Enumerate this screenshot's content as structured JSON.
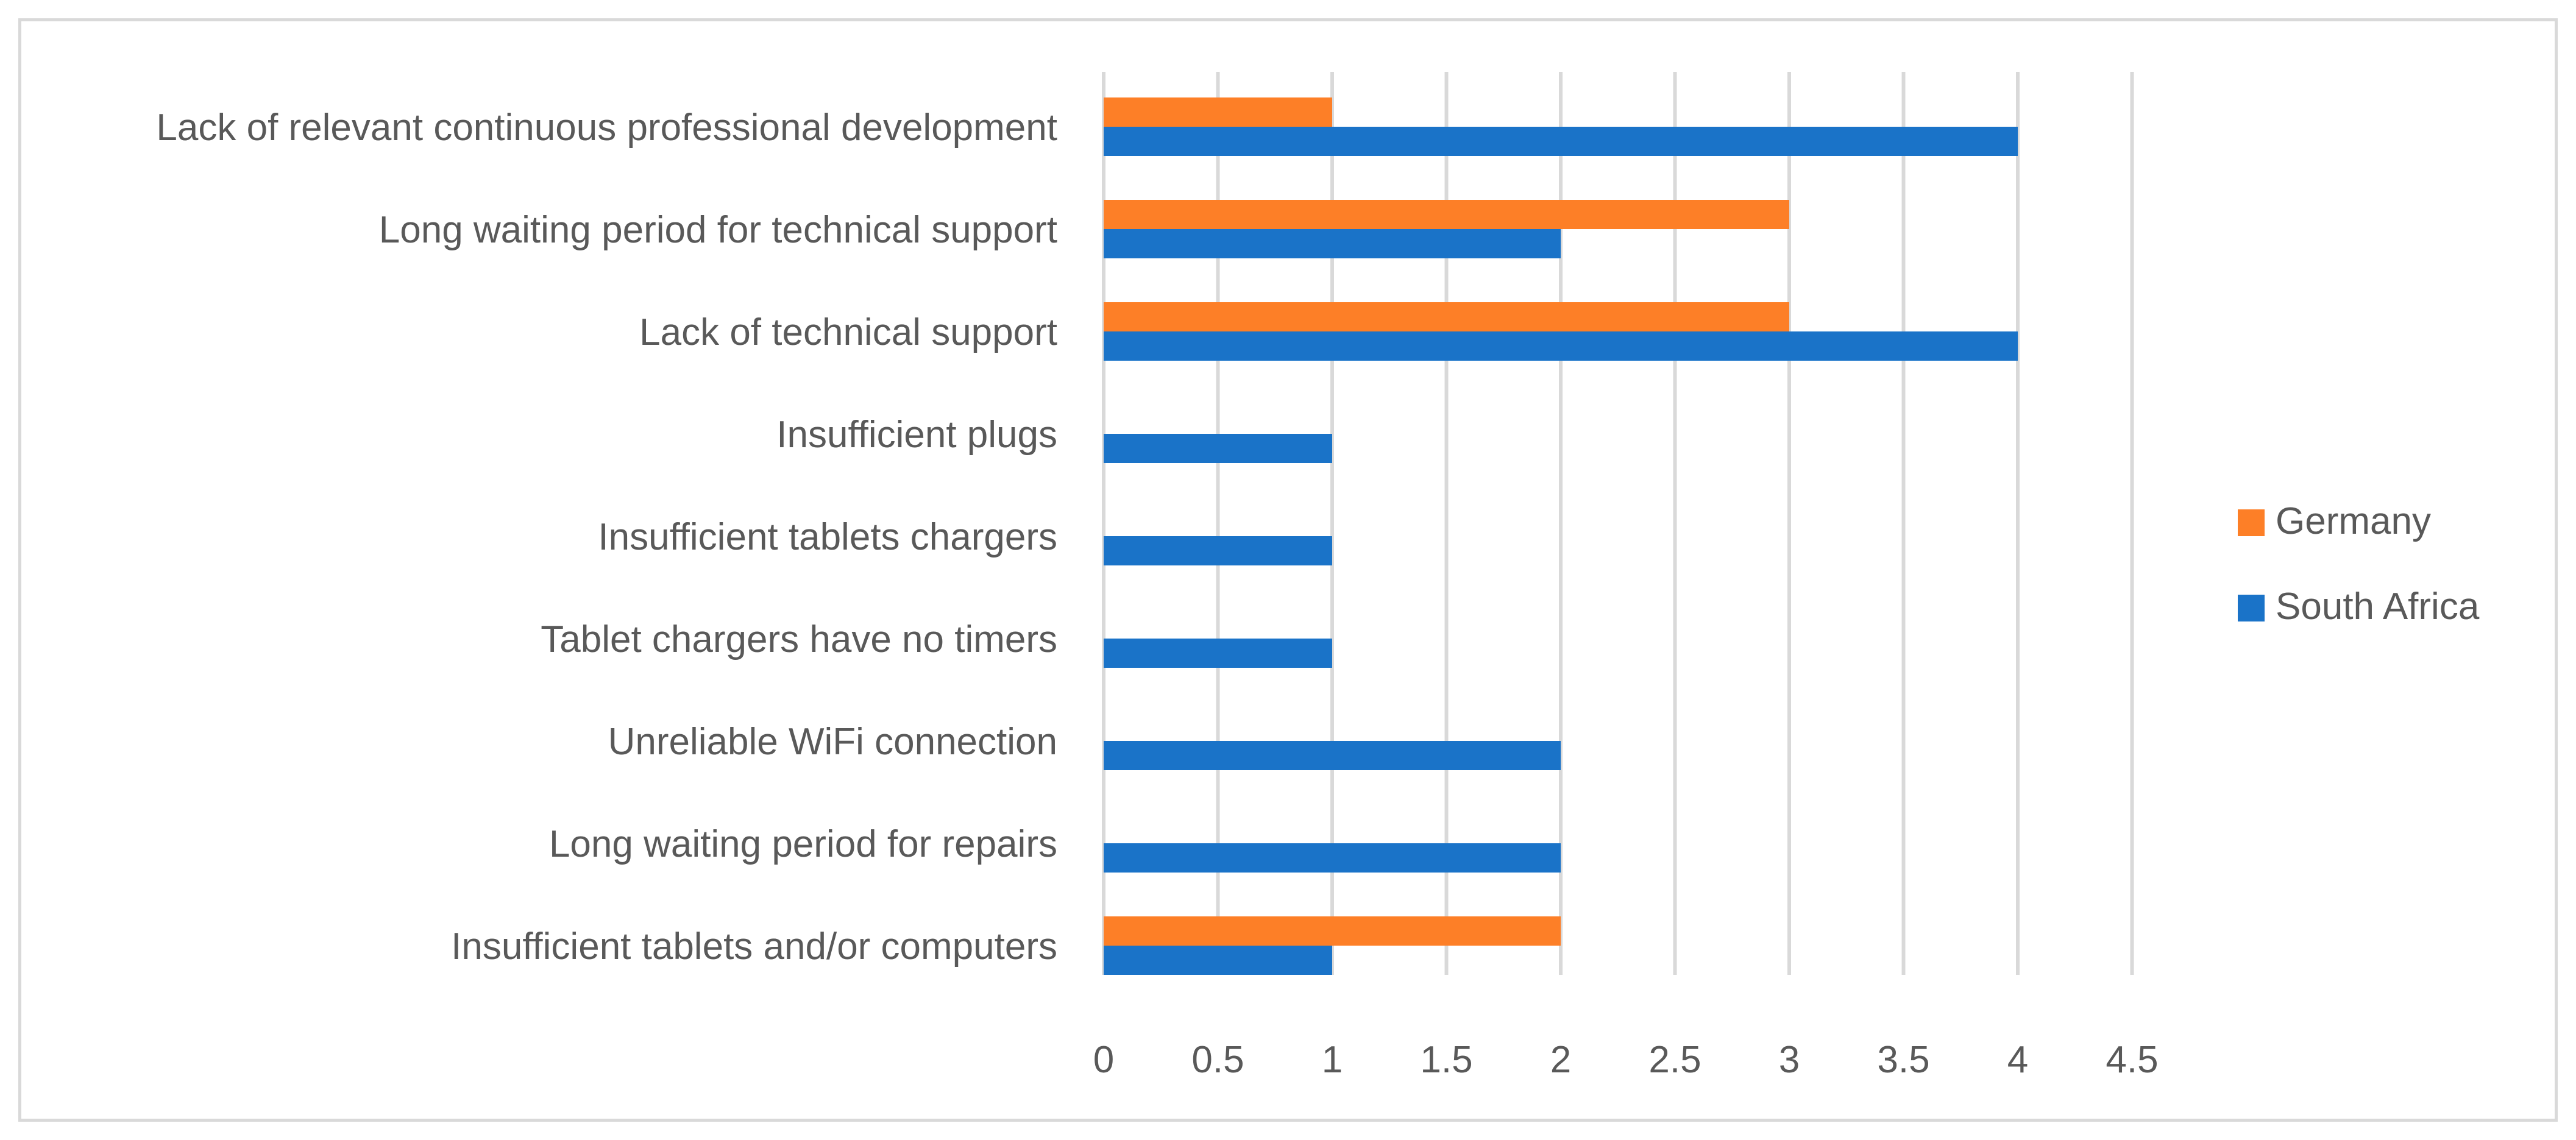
{
  "chart_data": {
    "type": "bar",
    "orientation": "horizontal",
    "title": "",
    "xlabel": "",
    "ylabel": "",
    "xlim": [
      0,
      4.5
    ],
    "grid": true,
    "legend_position": "right",
    "categories": [
      "Lack of relevant continuous professional development",
      "Long waiting period for technical support",
      "Lack of technical support",
      "Insufficient plugs",
      "Insufficient tablets chargers",
      "Tablet chargers have no timers",
      "Unreliable WiFi connection",
      "Long waiting period for repairs",
      "Insufficient tablets and/or computers"
    ],
    "ticks": [
      "0",
      "0.5",
      "1",
      "1.5",
      "2",
      "2.5",
      "3",
      "3.5",
      "4",
      "4.5"
    ],
    "series": [
      {
        "name": "Germany",
        "color": "#fd7f27",
        "values": [
          1,
          3,
          3,
          0,
          0,
          0,
          0,
          0,
          2
        ]
      },
      {
        "name": "South Africa",
        "color": "#1a73c8",
        "values": [
          4,
          2,
          4,
          1,
          1,
          1,
          2,
          2,
          1
        ]
      }
    ]
  }
}
